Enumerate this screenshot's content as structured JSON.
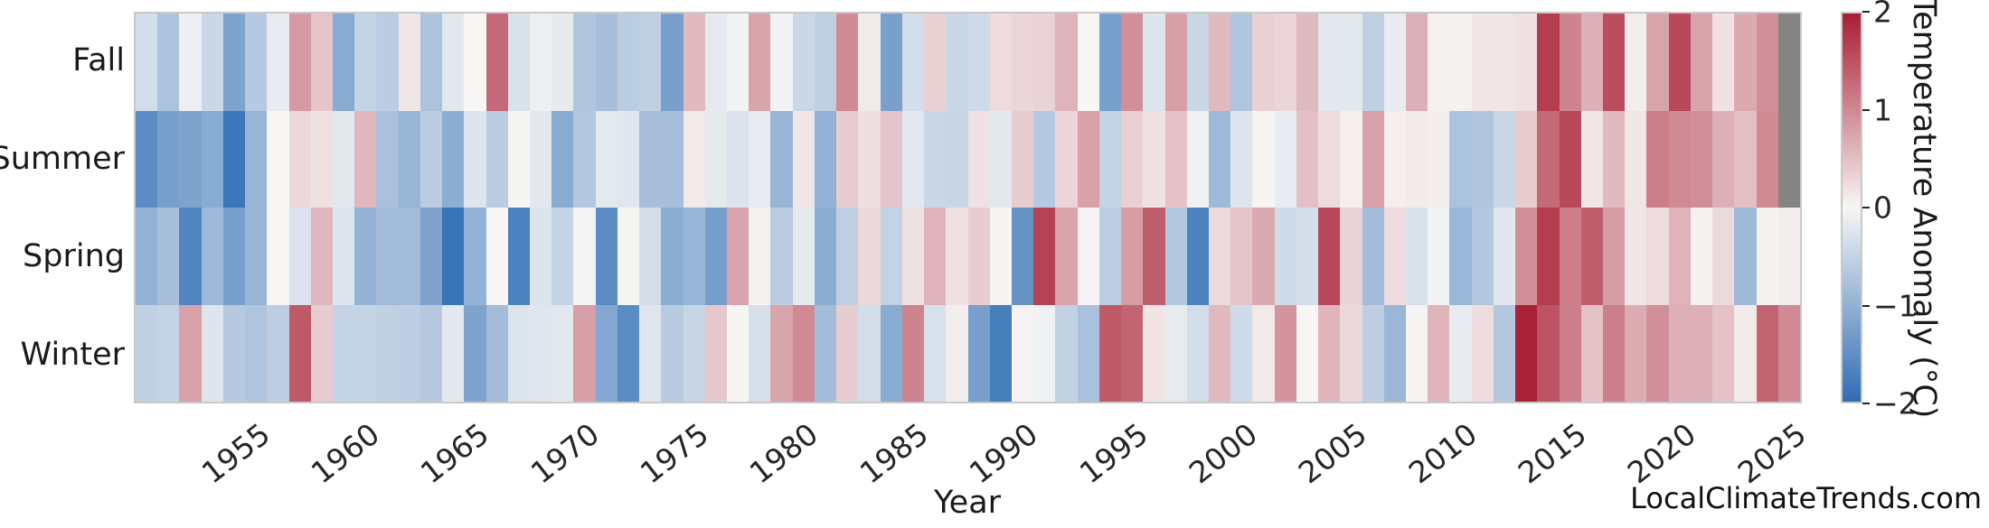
{
  "watermark": "LocalClimateTrends.com",
  "chart_data": {
    "type": "heatmap",
    "title": "",
    "xlabel": "Year",
    "ylabel": "",
    "rows": [
      "Fall",
      "Summer",
      "Spring",
      "Winter"
    ],
    "years": [
      1950,
      1951,
      1952,
      1953,
      1954,
      1955,
      1956,
      1957,
      1958,
      1959,
      1960,
      1961,
      1962,
      1963,
      1964,
      1965,
      1966,
      1967,
      1968,
      1969,
      1970,
      1971,
      1972,
      1973,
      1974,
      1975,
      1976,
      1977,
      1978,
      1979,
      1980,
      1981,
      1982,
      1983,
      1984,
      1985,
      1986,
      1987,
      1988,
      1989,
      1990,
      1991,
      1992,
      1993,
      1994,
      1995,
      1996,
      1997,
      1998,
      1999,
      2000,
      2001,
      2002,
      2003,
      2004,
      2005,
      2006,
      2007,
      2008,
      2009,
      2010,
      2011,
      2012,
      2013,
      2014,
      2015,
      2016,
      2017,
      2018,
      2019,
      2020,
      2021,
      2022,
      2023,
      2024,
      2025
    ],
    "x_ticks": [
      1955,
      1960,
      1965,
      1970,
      1975,
      1980,
      1985,
      1990,
      1995,
      2000,
      2005,
      2010,
      2015,
      2020,
      2025
    ],
    "series": [
      {
        "name": "Fall",
        "values": [
          -0.35,
          -0.75,
          -0.1,
          -0.45,
          -1.2,
          -0.65,
          -0.15,
          0.85,
          0.45,
          -1.1,
          -0.5,
          -0.6,
          0.15,
          -0.75,
          -0.2,
          0.0,
          1.3,
          -0.3,
          -0.1,
          -0.18,
          -0.7,
          -0.8,
          -0.6,
          -0.55,
          -1.25,
          0.55,
          -0.18,
          -0.05,
          0.75,
          -0.05,
          -0.45,
          -0.55,
          1.0,
          0.12,
          -1.25,
          -0.35,
          0.35,
          -0.45,
          -0.4,
          0.25,
          0.3,
          0.32,
          0.62,
          0.0,
          -1.25,
          0.95,
          -0.25,
          0.8,
          -0.45,
          0.55,
          -0.72,
          0.35,
          0.3,
          0.55,
          -0.2,
          -0.2,
          -0.55,
          -0.15,
          0.65,
          0.05,
          0.05,
          0.15,
          0.15,
          0.2,
          1.7,
          1.05,
          0.65,
          1.55,
          0.08,
          0.75,
          1.6,
          0.75,
          0.18,
          0.7,
          0.95,
          null
        ]
      },
      {
        "name": "Summer",
        "values": [
          -1.55,
          -1.25,
          -1.2,
          -1.1,
          -1.85,
          -0.95,
          0.0,
          0.28,
          0.2,
          -0.2,
          0.58,
          -0.78,
          -0.95,
          -0.62,
          -1.05,
          -0.25,
          -0.62,
          -0.02,
          -0.2,
          -1.1,
          -0.68,
          -0.18,
          -0.22,
          -0.8,
          -0.8,
          0.12,
          -0.18,
          -0.28,
          -0.15,
          -0.95,
          0.15,
          -1.0,
          0.4,
          0.22,
          0.45,
          -0.2,
          -0.45,
          -0.48,
          0.18,
          -0.2,
          0.38,
          -0.65,
          0.3,
          0.78,
          -0.5,
          0.35,
          0.18,
          0.48,
          -0.08,
          -0.88,
          -0.25,
          0.03,
          -0.15,
          0.5,
          0.25,
          0.07,
          0.78,
          0.07,
          0.1,
          0.08,
          -0.75,
          -0.7,
          -0.45,
          0.38,
          1.3,
          1.6,
          0.15,
          0.55,
          0.15,
          1.1,
          1.0,
          0.95,
          0.65,
          0.5,
          1.0,
          null
        ]
      },
      {
        "name": "Spring",
        "values": [
          -1.0,
          -0.8,
          -1.65,
          -0.9,
          -1.25,
          -0.95,
          0.0,
          -0.28,
          0.58,
          -0.26,
          -1.0,
          -0.85,
          -0.85,
          -1.2,
          -1.9,
          -1.0,
          0.0,
          -1.7,
          -0.28,
          -0.5,
          -0.03,
          -1.55,
          -0.02,
          -0.35,
          -1.05,
          -0.95,
          -1.3,
          0.75,
          0.05,
          -0.62,
          -0.18,
          -1.05,
          -0.55,
          0.28,
          -0.52,
          0.2,
          0.62,
          0.18,
          0.38,
          0.03,
          -1.45,
          1.65,
          0.75,
          -0.03,
          -0.58,
          0.82,
          1.4,
          -0.68,
          -1.7,
          0.27,
          0.45,
          0.7,
          -0.4,
          -0.35,
          1.6,
          0.32,
          -0.85,
          0.25,
          -0.3,
          -0.05,
          -0.92,
          -0.68,
          -0.22,
          0.95,
          1.7,
          1.1,
          1.4,
          0.82,
          0.15,
          0.25,
          0.62,
          0.05,
          0.27,
          -0.88,
          0.04,
          0.08
        ]
      },
      {
        "name": "Winter",
        "values": [
          -0.55,
          -0.52,
          0.78,
          -0.25,
          -0.65,
          -0.72,
          -0.58,
          1.45,
          0.4,
          -0.52,
          -0.5,
          -0.55,
          -0.58,
          -0.65,
          -0.2,
          -1.2,
          -0.85,
          -0.27,
          -0.23,
          -0.2,
          0.8,
          -1.15,
          -1.55,
          -0.23,
          -0.63,
          -0.48,
          0.42,
          -0.02,
          -0.33,
          0.75,
          1.0,
          -0.85,
          0.38,
          -0.37,
          -1.1,
          1.05,
          -0.32,
          0.08,
          -1.25,
          -1.75,
          0.03,
          -0.08,
          -0.53,
          -0.78,
          1.45,
          1.35,
          0.17,
          -0.16,
          -0.35,
          0.55,
          -0.4,
          0.12,
          0.9,
          0.0,
          0.6,
          0.28,
          -0.58,
          -0.92,
          0.02,
          0.6,
          -0.15,
          0.25,
          -0.68,
          1.95,
          1.5,
          1.1,
          0.48,
          1.1,
          0.68,
          0.95,
          0.65,
          0.65,
          0.48,
          0.12,
          1.35,
          1.0
        ]
      }
    ],
    "colorbar": {
      "label": "Temperature Anomaly (°C)",
      "ticks": [
        2,
        1,
        0,
        -1,
        -2
      ],
      "vmin": -2,
      "vmax": 2,
      "color_positive": "#a81d33",
      "color_zero": "#f7f6f5",
      "color_negative": "#2e6db4",
      "missing_color": "#848484"
    },
    "grid": false,
    "legend_position": "right-colorbar"
  }
}
